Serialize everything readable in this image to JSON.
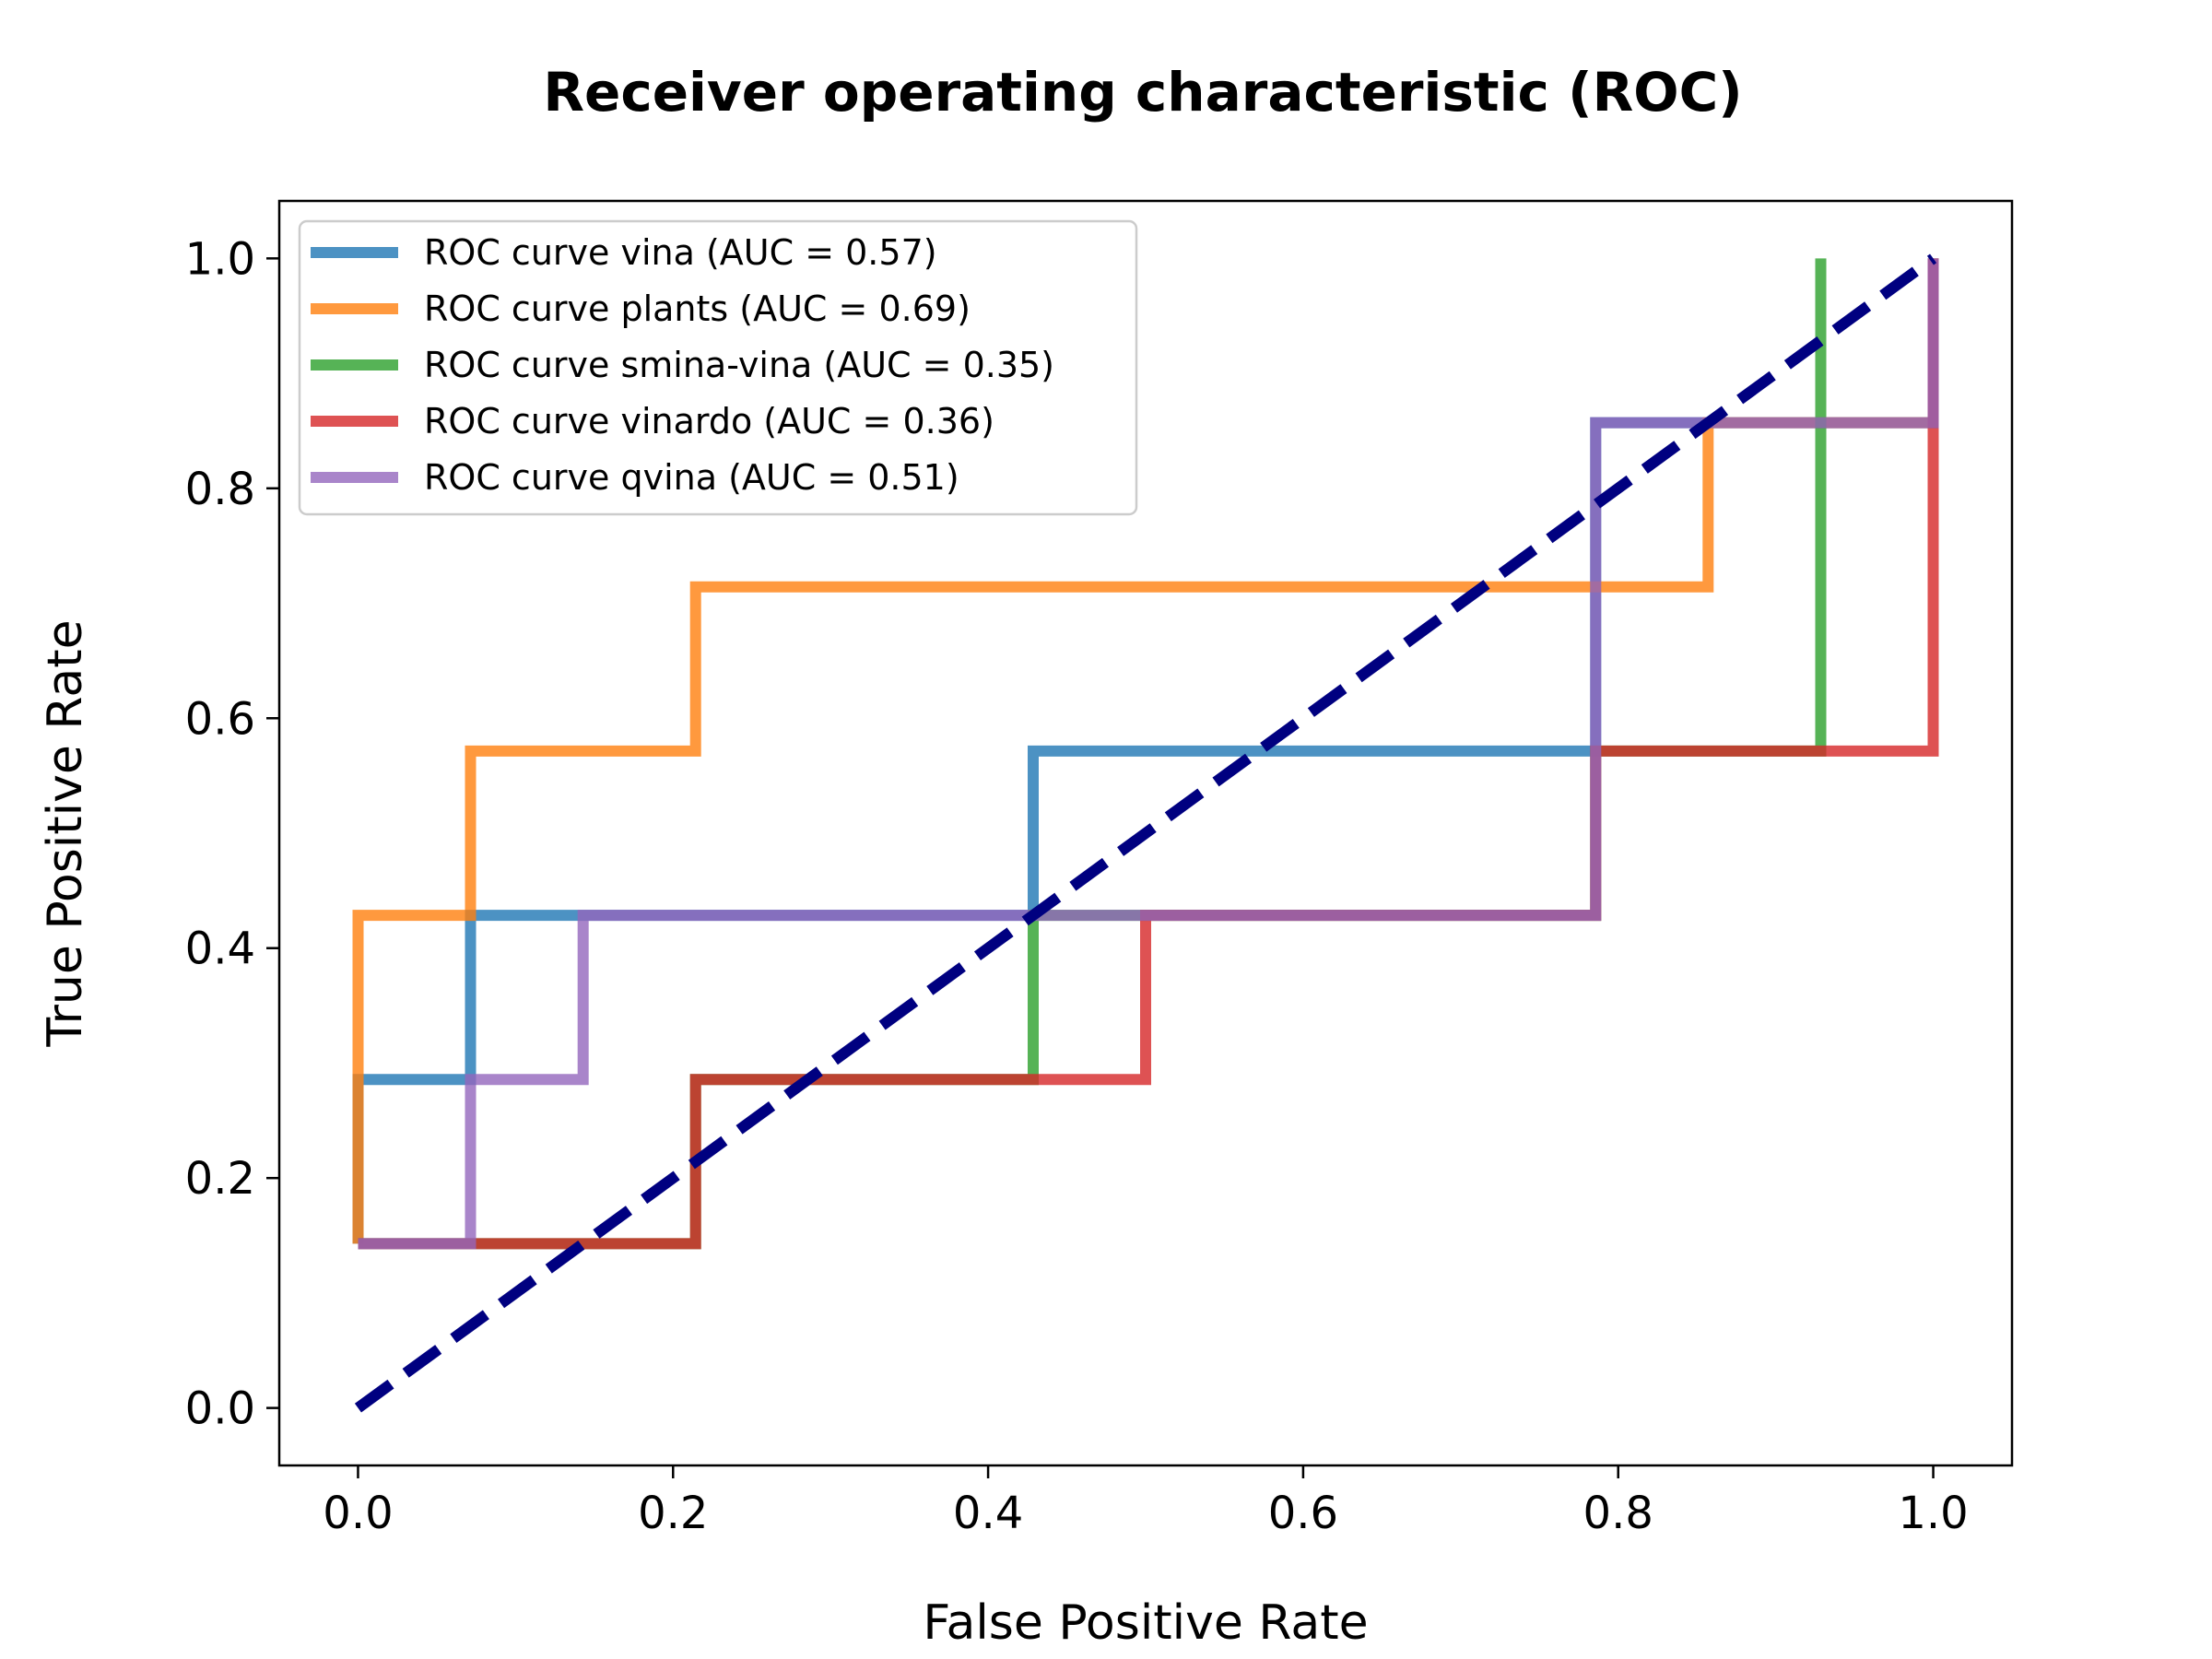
{
  "chart_data": {
    "type": "line",
    "title": "Receiver operating characteristic (ROC)",
    "xlabel": "False Positive Rate",
    "ylabel": "True Positive Rate",
    "xlim": [
      -0.05,
      1.05
    ],
    "ylim": [
      -0.05,
      1.05
    ],
    "xticks": [
      0.0,
      0.2,
      0.4,
      0.6,
      0.8,
      1.0
    ],
    "yticks": [
      0.0,
      0.2,
      0.4,
      0.6,
      0.8,
      1.0
    ],
    "tick_labels": [
      "0.0",
      "0.2",
      "0.4",
      "0.6",
      "0.8",
      "1.0"
    ],
    "grid": false,
    "legend_position": "upper-left",
    "series": [
      {
        "name": "ROC curve vina (AUC = 0.57)",
        "color": "#1f77b4",
        "x": [
          0,
          0,
          0.0714,
          0.0714,
          0.4286,
          0.4286,
          0.7857,
          0.7857,
          1.0,
          1.0
        ],
        "y": [
          0.1429,
          0.2857,
          0.2857,
          0.4286,
          0.4286,
          0.5714,
          0.5714,
          0.8571,
          0.8571,
          1.0
        ]
      },
      {
        "name": "ROC curve plants (AUC = 0.69)",
        "color": "#ff7f0e",
        "x": [
          0,
          0,
          0.0714,
          0.0714,
          0.2143,
          0.2143,
          0.8571,
          0.8571,
          1.0,
          1.0
        ],
        "y": [
          0.1429,
          0.4286,
          0.4286,
          0.5714,
          0.5714,
          0.7143,
          0.7143,
          0.8571,
          0.8571,
          1.0
        ]
      },
      {
        "name": "ROC curve smina-vina (AUC = 0.35)",
        "color": "#2ca02c",
        "x": [
          0,
          0.2143,
          0.2143,
          0.4286,
          0.4286,
          0.7857,
          0.7857,
          0.9286,
          0.9286
        ],
        "y": [
          0.1429,
          0.1429,
          0.2857,
          0.2857,
          0.4286,
          0.4286,
          0.5714,
          0.5714,
          1.0
        ]
      },
      {
        "name": "ROC curve vinardo (AUC = 0.36)",
        "color": "#d62728",
        "x": [
          0,
          0.2143,
          0.2143,
          0.5,
          0.5,
          0.7857,
          0.7857,
          1.0,
          1.0
        ],
        "y": [
          0.1429,
          0.1429,
          0.2857,
          0.2857,
          0.4286,
          0.4286,
          0.5714,
          0.5714,
          1.0
        ]
      },
      {
        "name": "ROC curve qvina (AUC = 0.51)",
        "color": "#9467bd",
        "x": [
          0,
          0.0714,
          0.0714,
          0.1429,
          0.1429,
          0.7857,
          0.7857,
          1.0,
          1.0
        ],
        "y": [
          0.1429,
          0.1429,
          0.2857,
          0.2857,
          0.4286,
          0.4286,
          0.8571,
          0.8571,
          1.0
        ]
      }
    ],
    "reference_line": {
      "color": "#000080",
      "style": "dashed",
      "x": [
        0,
        1
      ],
      "y": [
        0,
        1
      ]
    }
  }
}
